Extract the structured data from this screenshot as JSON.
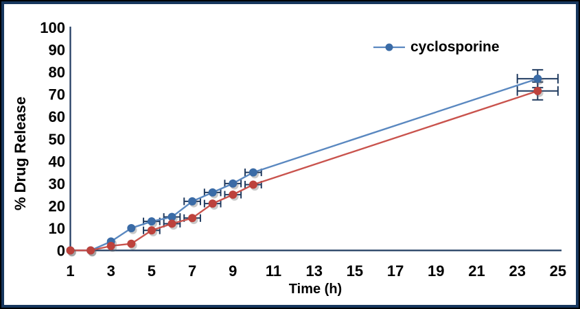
{
  "figure": {
    "background": "#FFFFFF",
    "outer_border_color": "#000000",
    "inner_border_color": "#17375E",
    "axis_color": "#1F3A5F",
    "error_bar_color": "#1F3A5F"
  },
  "chart_data": {
    "type": "line",
    "title": "",
    "xlabel": "Time (h)",
    "ylabel": "% Drug Release",
    "x_ticks": [
      1,
      3,
      5,
      7,
      9,
      11,
      13,
      15,
      17,
      19,
      21,
      23,
      25
    ],
    "y_ticks": [
      0,
      10,
      20,
      30,
      40,
      50,
      60,
      70,
      80,
      90,
      100
    ],
    "xlim": [
      1,
      25
    ],
    "ylim": [
      0,
      100
    ],
    "grid": false,
    "legend_position": "top-center-inside",
    "series": [
      {
        "name": "cyclosporine",
        "in_legend": true,
        "color": "#5A88C0",
        "marker_color": "#3A6BA6",
        "x": [
          1,
          2,
          3,
          4,
          5,
          6,
          7,
          8,
          9,
          10,
          24
        ],
        "y": [
          0,
          0,
          4,
          10,
          13,
          15,
          22,
          26,
          30,
          35,
          77
        ],
        "x_err": [
          0,
          0,
          0,
          0,
          0.4,
          0.4,
          0.4,
          0.4,
          0.4,
          0.4,
          1
        ],
        "y_err": [
          0,
          0,
          0,
          0,
          0,
          0,
          0,
          0,
          0,
          0,
          4
        ]
      },
      {
        "name": "",
        "in_legend": false,
        "color": "#C9534D",
        "marker_color": "#BD423C",
        "x": [
          1,
          2,
          3,
          4,
          5,
          6,
          7,
          8,
          9,
          10,
          24
        ],
        "y": [
          0,
          0,
          2,
          3,
          9,
          12,
          14.5,
          21,
          25,
          29.5,
          71.5
        ],
        "x_err": [
          0,
          0,
          0,
          0,
          0.4,
          0.4,
          0.4,
          0.4,
          0.4,
          0.4,
          1
        ],
        "y_err": [
          0,
          0,
          0,
          0,
          0,
          0,
          0,
          0,
          0,
          0,
          4
        ]
      }
    ]
  }
}
